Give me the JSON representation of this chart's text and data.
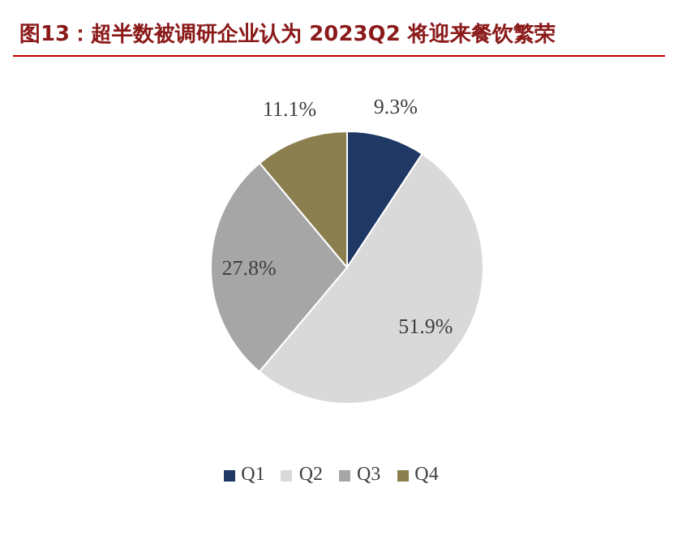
{
  "chart_data": {
    "type": "pie",
    "title": "图13：超半数被调研企业认为 2023Q2 将迎来餐饮繁荣",
    "categories": [
      "Q1",
      "Q2",
      "Q3",
      "Q4"
    ],
    "values": [
      9.3,
      51.9,
      27.8,
      11.1
    ],
    "colors": [
      "#1f3864",
      "#d9d9d9",
      "#a6a6a6",
      "#8c7f4f"
    ],
    "value_labels": [
      "9.3%",
      "51.9%",
      "27.8%",
      "11.1%"
    ],
    "legend": "bottom"
  }
}
